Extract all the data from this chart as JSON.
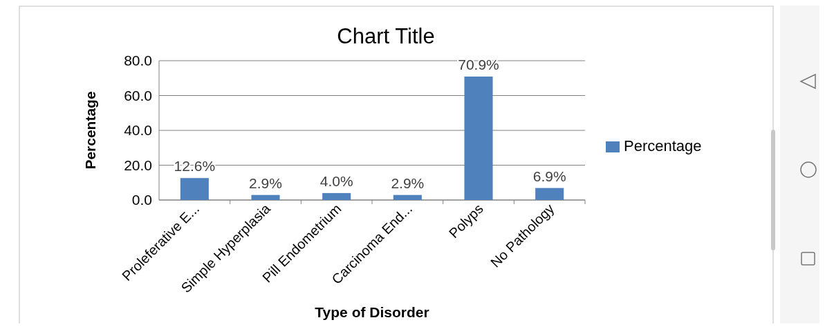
{
  "chart_data": {
    "type": "bar",
    "title": "Chart Title",
    "xlabel": "Type of Disorder",
    "ylabel": "Percentage",
    "categories": [
      "Proleferative E...",
      "Simple Hyperplasia",
      "Pill Endometrium",
      "Carcinoma End...",
      "Polyps",
      "No Pathology"
    ],
    "series": [
      {
        "name": "Percentage",
        "color": "#4f81bd",
        "values": [
          12.6,
          2.9,
          4.0,
          2.9,
          70.9,
          6.9
        ],
        "value_labels": [
          "12.6%",
          "2.9%",
          "4.0%",
          "2.9%",
          "70.9%",
          "6.9%"
        ]
      }
    ],
    "ylim": [
      0,
      80
    ],
    "yticks": [
      {
        "value": 0,
        "label": "0.0"
      },
      {
        "value": 20,
        "label": "20.0"
      },
      {
        "value": 40,
        "label": "40.0"
      },
      {
        "value": 60,
        "label": "60.0"
      },
      {
        "value": 80,
        "label": "80.0"
      }
    ],
    "grid": "y",
    "legend": "right"
  }
}
